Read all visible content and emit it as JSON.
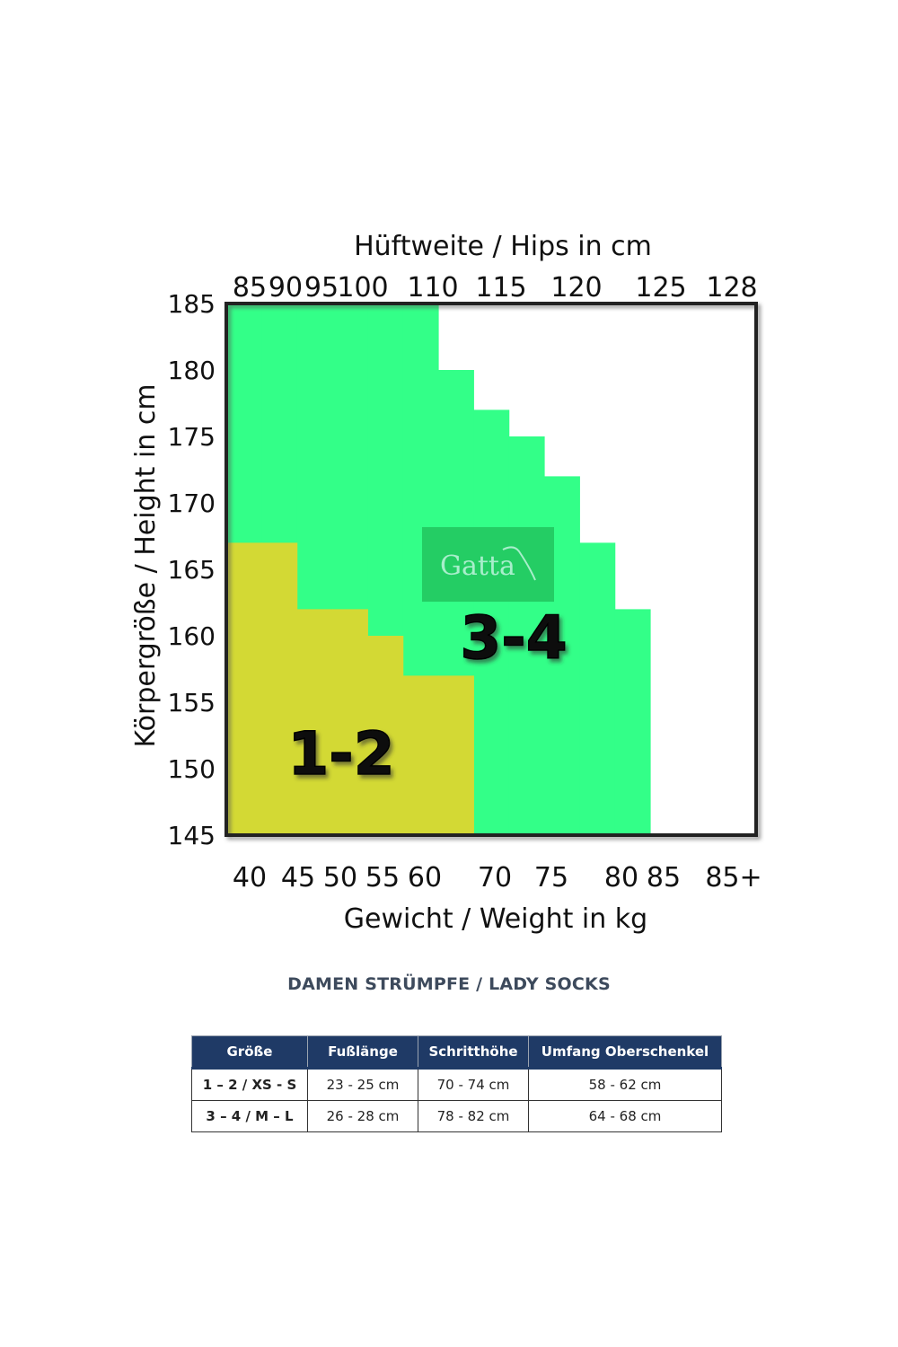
{
  "chart_data": {
    "type": "heatmap",
    "top_axis": {
      "label": "Hüftweite / Hips in cm",
      "ticks": [
        "85",
        "90",
        "95",
        "100",
        "110",
        "115",
        "120",
        "125",
        "128"
      ]
    },
    "bottom_axis": {
      "label": "Gewicht / Weight in kg",
      "ticks": [
        "40",
        "45",
        "50",
        "55",
        "60",
        "70",
        "75",
        "80",
        "85",
        "85+"
      ]
    },
    "left_axis": {
      "label": "Körpergröße / Height in cm",
      "ticks": [
        "185",
        "180",
        "175",
        "170",
        "165",
        "160",
        "155",
        "150",
        "145"
      ],
      "ylim": [
        145,
        185
      ]
    },
    "regions": [
      {
        "name": "1-2",
        "color": "#d3d934",
        "upper_height_per_weight_column": [
          167,
          167,
          162,
          162,
          160,
          157,
          157
        ]
      },
      {
        "name": "3-4",
        "color": "#33ff88",
        "upper_height_per_weight_column": [
          185,
          185,
          185,
          185,
          185,
          185,
          180,
          177,
          175,
          172,
          167,
          162
        ]
      }
    ],
    "grid": false,
    "column_count": 15,
    "logo": "Gatta"
  },
  "caption": "DAMEN STRÜMPFE / LADY SOCKS",
  "table": {
    "headers": [
      "Größe",
      "Fußlänge",
      "Schritthöhe",
      "Umfang Oberschenkel"
    ],
    "rows": [
      [
        "1 – 2 / XS - S",
        "23 - 25 cm",
        "70 - 74 cm",
        "58 - 62 cm"
      ],
      [
        "3 – 4 / M – L",
        "26 - 28 cm",
        "78 - 82 cm",
        "64 - 68 cm"
      ]
    ]
  }
}
